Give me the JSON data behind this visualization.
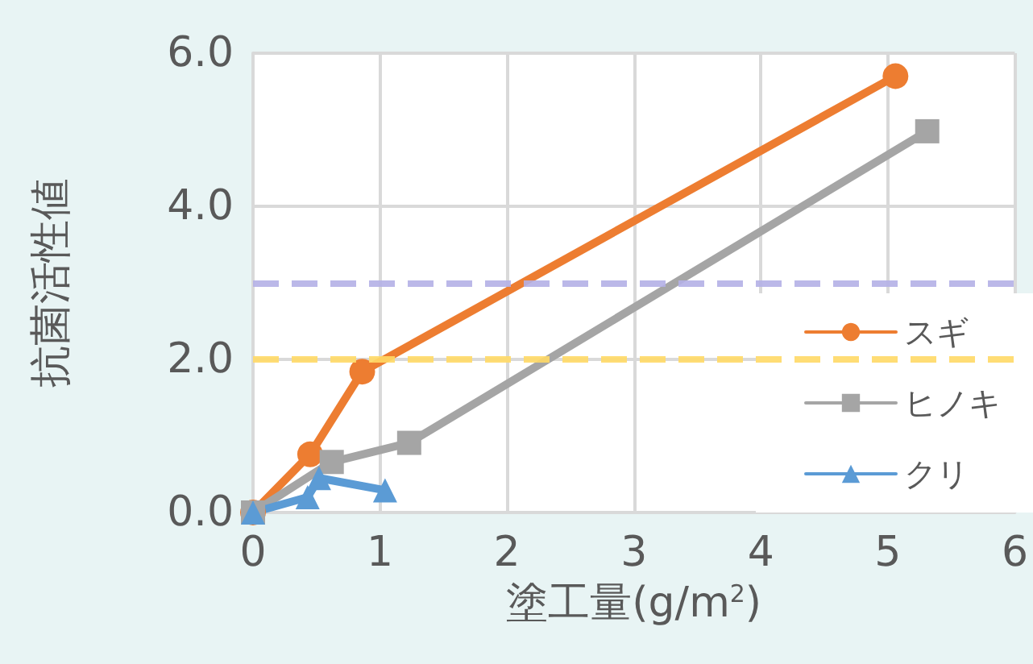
{
  "chart_data": {
    "type": "line",
    "xlabel": "塗工量(g/m$^{2}$)",
    "ylabel": "抗菌活性値",
    "xlim": [
      0,
      6
    ],
    "xticks": [
      0,
      1,
      2,
      3,
      4,
      5,
      6
    ],
    "ylim": [
      0,
      6
    ],
    "yticks": [
      {
        "value": 0,
        "label": "0.0"
      },
      {
        "value": 2,
        "label": "2.0"
      },
      {
        "value": 4,
        "label": "4.0"
      },
      {
        "value": 6,
        "label": "6.0"
      }
    ],
    "grid": true,
    "legend": "bottom right",
    "line_style": "solid",
    "series": [
      {
        "name": "スギ",
        "color": "#ed7d31",
        "marker": "circle",
        "x": [
          0,
          0.45,
          0.86,
          5.06
        ],
        "values": [
          0,
          0.76,
          1.84,
          5.7
        ]
      },
      {
        "name": "ヒノキ",
        "color": "#a5a5a5",
        "marker": "square",
        "x": [
          0,
          0.62,
          1.23,
          5.31
        ],
        "values": [
          0,
          0.66,
          0.91,
          4.98
        ]
      },
      {
        "name": "クリ",
        "color": "#5b9bd5",
        "marker": "triangle",
        "x": [
          0,
          0.43,
          0.52,
          1.04
        ],
        "values": [
          0,
          0.2,
          0.45,
          0.29
        ]
      }
    ],
    "ref_lines": [
      {
        "axis": "y",
        "value": 3,
        "color": "#b4b0e6",
        "line_style": "dashed"
      },
      {
        "axis": "y",
        "value": 2,
        "color": "#ffd966",
        "line_style": "dashed"
      }
    ]
  }
}
